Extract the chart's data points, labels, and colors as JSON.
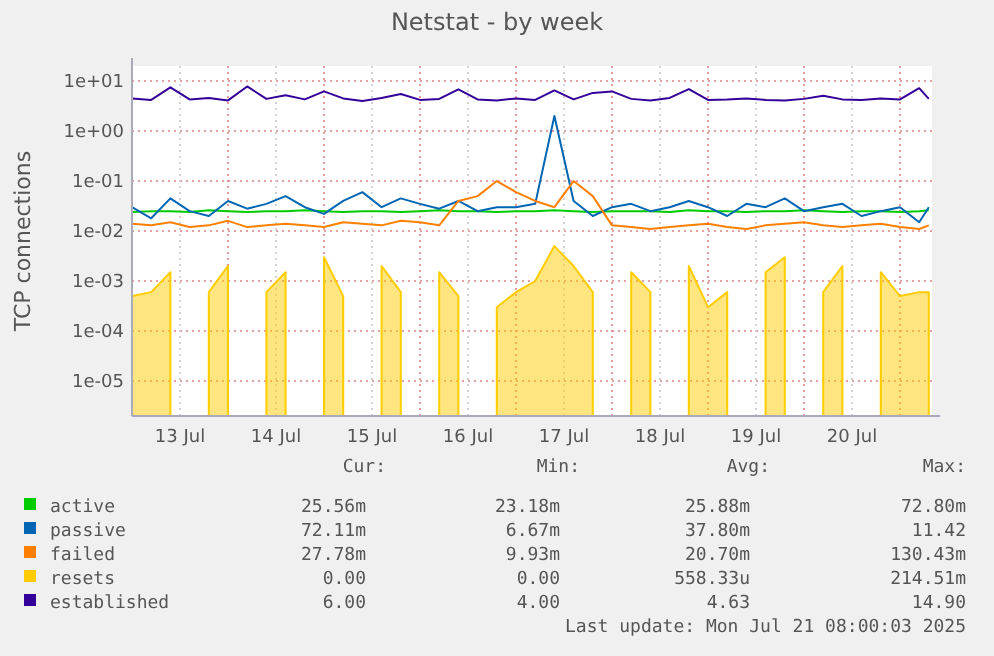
{
  "chart_data": {
    "type": "line",
    "title": "Netstat - by week",
    "ylabel": "TCP connections",
    "log": "y",
    "grid": true,
    "legend": "bottom",
    "xlim": [
      "--07-13T00:00",
      "--07-21T08:00"
    ],
    "xticks": [
      {
        "value": "--07-13T12:00",
        "label": "13 Jul"
      },
      {
        "value": "--07-14T00:00",
        "label": null
      },
      {
        "value": "--07-14T12:00",
        "label": "14 Jul"
      },
      {
        "value": "--07-15T00:00",
        "label": null
      },
      {
        "value": "--07-15T12:00",
        "label": "15 Jul"
      },
      {
        "value": "--07-16T00:00",
        "label": null
      },
      {
        "value": "--07-16T12:00",
        "label": "16 Jul"
      },
      {
        "value": "--07-17T00:00",
        "label": null
      },
      {
        "value": "--07-17T12:00",
        "label": "17 Jul"
      },
      {
        "value": "--07-18T00:00",
        "label": null
      },
      {
        "value": "--07-18T12:00",
        "label": "18 Jul"
      },
      {
        "value": "--07-19T00:00",
        "label": null
      },
      {
        "value": "--07-19T12:00",
        "label": "19 Jul"
      },
      {
        "value": "--07-20T00:00",
        "label": null
      },
      {
        "value": "--07-20T12:00",
        "label": "20 Jul"
      },
      {
        "value": "--07-21T00:00",
        "label": null
      }
    ],
    "ylim": [
      2e-06,
      20
    ],
    "yticks": [
      {
        "value": 10,
        "label": "1e+01"
      },
      {
        "value": 1,
        "label": "1e+00"
      },
      {
        "value": 0.1,
        "label": "1e-01"
      },
      {
        "value": 0.01,
        "label": "1e-02"
      },
      {
        "value": 0.001,
        "label": "1e-03"
      },
      {
        "value": 0.0001,
        "label": "1e-04"
      },
      {
        "value": 1e-05,
        "label": "1e-05"
      }
    ],
    "x": [
      "--07-13T00:00",
      "--07-13T04:48",
      "--07-13T09:36",
      "--07-13T14:24",
      "--07-13T19:12",
      "--07-14T00:00",
      "--07-14T04:48",
      "--07-14T09:36",
      "--07-14T14:24",
      "--07-14T19:12",
      "--07-15T00:00",
      "--07-15T04:48",
      "--07-15T09:36",
      "--07-15T14:24",
      "--07-15T19:12",
      "--07-16T00:00",
      "--07-16T04:48",
      "--07-16T09:36",
      "--07-16T14:24",
      "--07-16T19:12",
      "--07-17T00:00",
      "--07-17T04:48",
      "--07-17T09:36",
      "--07-17T14:24",
      "--07-17T19:12",
      "--07-18T00:00",
      "--07-18T04:48",
      "--07-18T09:36",
      "--07-18T14:24",
      "--07-18T19:12",
      "--07-19T00:00",
      "--07-19T04:48",
      "--07-19T09:36",
      "--07-19T14:24",
      "--07-19T19:12",
      "--07-20T00:00",
      "--07-20T04:48",
      "--07-20T09:36",
      "--07-20T14:24",
      "--07-20T19:12",
      "--07-21T00:00",
      "--07-21T04:48",
      "--07-21T07:12"
    ],
    "series": [
      {
        "name": "active",
        "color": "#00cc00",
        "values": [
          0.024,
          0.025,
          0.025,
          0.024,
          0.026,
          0.025,
          0.024,
          0.025,
          0.025,
          0.026,
          0.025,
          0.024,
          0.025,
          0.025,
          0.024,
          0.025,
          0.026,
          0.025,
          0.025,
          0.024,
          0.025,
          0.025,
          0.026,
          0.025,
          0.024,
          0.025,
          0.025,
          0.025,
          0.024,
          0.026,
          0.025,
          0.025,
          0.024,
          0.025,
          0.025,
          0.026,
          0.025,
          0.024,
          0.025,
          0.025,
          0.024,
          0.025,
          0.026
        ]
      },
      {
        "name": "passive",
        "color": "#0066b3",
        "values": [
          0.03,
          0.018,
          0.045,
          0.025,
          0.02,
          0.04,
          0.028,
          0.035,
          0.05,
          0.03,
          0.022,
          0.04,
          0.06,
          0.03,
          0.045,
          0.035,
          0.028,
          0.04,
          0.025,
          0.03,
          0.03,
          0.035,
          2.0,
          0.04,
          0.02,
          0.03,
          0.035,
          0.025,
          0.03,
          0.04,
          0.03,
          0.02,
          0.035,
          0.03,
          0.045,
          0.025,
          0.03,
          0.035,
          0.02,
          0.025,
          0.03,
          0.015,
          0.03
        ]
      },
      {
        "name": "failed",
        "color": "#ff8000",
        "values": [
          0.014,
          0.013,
          0.015,
          0.012,
          0.013,
          0.016,
          0.012,
          0.013,
          0.014,
          0.013,
          0.012,
          0.015,
          0.014,
          0.013,
          0.016,
          0.015,
          0.013,
          0.04,
          0.05,
          0.1,
          0.06,
          0.04,
          0.03,
          0.1,
          0.05,
          0.013,
          0.012,
          0.011,
          0.012,
          0.013,
          0.014,
          0.012,
          0.011,
          0.013,
          0.014,
          0.015,
          0.013,
          0.012,
          0.013,
          0.014,
          0.012,
          0.011,
          0.013
        ]
      },
      {
        "name": "resets",
        "type": "area",
        "color": "#ffcc00",
        "values": [
          0.0005,
          0.0006,
          0.0015,
          null,
          0.0006,
          0.002,
          null,
          0.0006,
          0.0015,
          null,
          0.003,
          0.0005,
          null,
          0.002,
          0.0006,
          null,
          0.0015,
          0.0005,
          null,
          0.0003,
          0.0006,
          0.001,
          0.005,
          0.002,
          0.0006,
          null,
          0.0015,
          0.0006,
          null,
          0.002,
          0.0003,
          0.0006,
          null,
          0.0015,
          0.003,
          null,
          0.0006,
          0.002,
          null,
          0.0015,
          0.0005,
          0.0006,
          0.0006
        ]
      },
      {
        "name": "established",
        "color": "#330099",
        "values": [
          4.5,
          4.2,
          7.5,
          4.3,
          4.6,
          4.1,
          7.8,
          4.4,
          5.2,
          4.3,
          6.2,
          4.5,
          4.0,
          4.6,
          5.5,
          4.2,
          4.4,
          6.8,
          4.3,
          4.1,
          4.5,
          4.2,
          6.5,
          4.3,
          5.8,
          6.2,
          4.4,
          4.1,
          4.6,
          6.9,
          4.2,
          4.3,
          4.5,
          4.2,
          4.1,
          4.4,
          5.1,
          4.3,
          4.2,
          4.5,
          4.3,
          7.2,
          4.4
        ]
      }
    ],
    "annotations": [
      "Cur:",
      "Min:",
      "Avg:",
      "Max:",
      "25.56m",
      "23.18m",
      "25.88m",
      "72.80m",
      "72.11m",
      "6.67m",
      "37.80m",
      "11.42",
      "27.78m",
      "9.93m",
      "20.70m",
      "130.43m",
      "0.00",
      "0.00",
      "558.33u",
      "214.51m",
      "6.00",
      "4.00",
      "4.63",
      "14.90",
      "Last update: Mon Jul 21 08:00:03 2025"
    ]
  }
}
